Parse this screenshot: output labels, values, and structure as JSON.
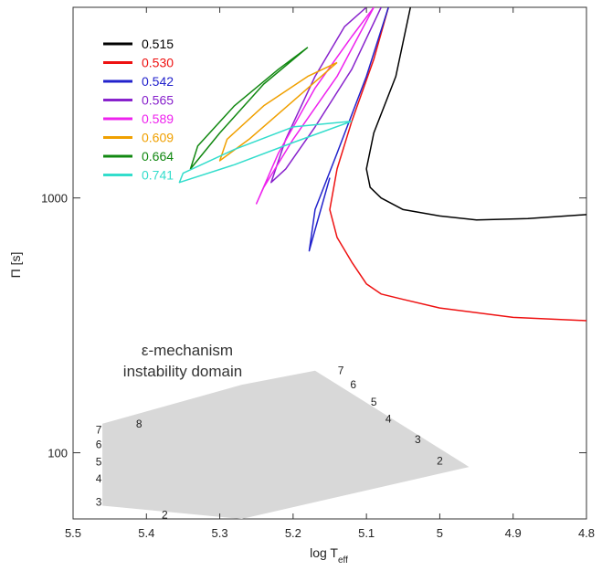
{
  "chart_data": {
    "type": "line",
    "title": "",
    "xlabel": "log T",
    "xlabel_sub": "eff",
    "ylabel": "Π [s]",
    "xlim": [
      5.5,
      4.8
    ],
    "ylim": [
      55,
      5600
    ],
    "y_scale": "log",
    "x_ticks": [
      "5.5",
      "5.4",
      "5.3",
      "5.2",
      "5.1",
      "5",
      "4.9",
      "4.8"
    ],
    "x_tick_values": [
      5.5,
      5.4,
      5.3,
      5.2,
      5.1,
      5.0,
      4.9,
      4.8
    ],
    "y_ticks": [
      "100",
      "1000"
    ],
    "y_tick_values": [
      100,
      1000
    ],
    "legend_placement": "top-left",
    "series": [
      {
        "name": "0.515",
        "color": "#000000",
        "x": [
          5.04,
          5.06,
          5.09,
          5.1,
          5.095,
          5.08,
          5.05,
          5.0,
          4.95,
          4.88,
          4.8
        ],
        "y": [
          5600,
          3000,
          1800,
          1300,
          1100,
          1000,
          900,
          850,
          820,
          830,
          860
        ]
      },
      {
        "name": "0.530",
        "color": "#ee1111",
        "x": [
          5.07,
          5.09,
          5.12,
          5.14,
          5.15,
          5.14,
          5.12,
          5.1,
          5.08,
          5.05,
          5.0,
          4.9,
          4.8
        ],
        "y": [
          5600,
          3500,
          2000,
          1300,
          900,
          700,
          560,
          460,
          420,
          400,
          370,
          340,
          330
        ]
      },
      {
        "name": "0.542",
        "color": "#2222cc",
        "x": [
          5.07,
          5.1,
          5.14,
          5.17,
          5.178,
          5.17,
          5.15
        ],
        "y": [
          5600,
          3000,
          1500,
          900,
          620,
          750,
          1200
        ]
      },
      {
        "name": "0.565",
        "color": "#8822cc",
        "x": [
          5.08,
          5.12,
          5.17,
          5.21,
          5.23,
          5.21,
          5.17,
          5.13,
          5.1
        ],
        "y": [
          5600,
          3200,
          1900,
          1300,
          1150,
          1700,
          3000,
          4700,
          5600
        ]
      },
      {
        "name": "0.589",
        "color": "#ee22ee",
        "x": [
          5.09,
          5.14,
          5.2,
          5.24,
          5.25,
          5.22,
          5.17,
          5.12,
          5.09
        ],
        "y": [
          5600,
          3000,
          1700,
          1100,
          950,
          1500,
          2700,
          4300,
          5600
        ]
      },
      {
        "name": "0.609",
        "color": "#f0a000",
        "x": [
          5.14,
          5.2,
          5.26,
          5.3,
          5.29,
          5.24,
          5.18,
          5.14
        ],
        "y": [
          3400,
          2400,
          1700,
          1400,
          1700,
          2300,
          3000,
          3400
        ]
      },
      {
        "name": "0.664",
        "color": "#118811",
        "x": [
          5.18,
          5.24,
          5.3,
          5.34,
          5.33,
          5.28,
          5.22,
          5.18
        ],
        "y": [
          3900,
          2800,
          1800,
          1300,
          1600,
          2300,
          3200,
          3900
        ]
      },
      {
        "name": "0.741",
        "color": "#33ddcc",
        "x": [
          5.12,
          5.2,
          5.28,
          5.355,
          5.35,
          5.28,
          5.2,
          5.12
        ],
        "y": [
          2000,
          1650,
          1350,
          1150,
          1250,
          1550,
          1900,
          2000
        ]
      }
    ],
    "region": {
      "label_line1": "ε-mechanism",
      "label_line2": "instability domain",
      "color": "#d8d8d8",
      "polygon_x": [
        5.46,
        5.27,
        5.17,
        4.96,
        5.27,
        5.46
      ],
      "polygon_y": [
        130,
        185,
        210,
        88,
        55,
        62
      ]
    },
    "mode_labels": [
      {
        "text": "7",
        "x": 5.465,
        "y": 123
      },
      {
        "text": "6",
        "x": 5.465,
        "y": 108
      },
      {
        "text": "5",
        "x": 5.465,
        "y": 92
      },
      {
        "text": "4",
        "x": 5.465,
        "y": 79
      },
      {
        "text": "3",
        "x": 5.465,
        "y": 64
      },
      {
        "text": "8",
        "x": 5.41,
        "y": 130
      },
      {
        "text": "2",
        "x": 5.375,
        "y": 57
      },
      {
        "text": "7",
        "x": 5.135,
        "y": 210
      },
      {
        "text": "6",
        "x": 5.118,
        "y": 185
      },
      {
        "text": "5",
        "x": 5.09,
        "y": 158
      },
      {
        "text": "4",
        "x": 5.07,
        "y": 136
      },
      {
        "text": "3",
        "x": 5.03,
        "y": 113
      },
      {
        "text": "2",
        "x": 5.0,
        "y": 93
      }
    ]
  }
}
